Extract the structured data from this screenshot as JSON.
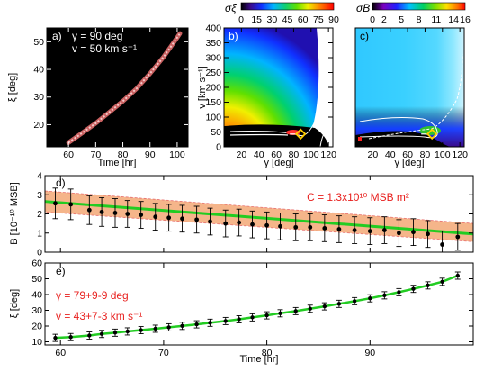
{
  "chart_data": [
    {
      "id": "a",
      "type": "heatmap",
      "panel_label": "a)",
      "annotations": [
        "γ  =  90 deg",
        "v  =  50 km s⁻¹"
      ],
      "xlabel": "Time [hr]",
      "ylabel": "ξ [deg]",
      "xlim": [
        52,
        104
      ],
      "ylim": [
        12,
        55
      ],
      "xticks": [
        60,
        70,
        80,
        90,
        100
      ],
      "yticks": [
        20,
        30,
        40,
        50
      ],
      "track": [
        [
          60,
          13.5
        ],
        [
          65,
          17
        ],
        [
          70,
          20.5
        ],
        [
          75,
          24.5
        ],
        [
          80,
          28.5
        ],
        [
          85,
          33
        ],
        [
          90,
          38.5
        ],
        [
          95,
          44.5
        ],
        [
          100,
          51.5
        ],
        [
          101,
          53
        ]
      ]
    },
    {
      "id": "b",
      "type": "heatmap",
      "panel_label": "b)",
      "colorbar_label": "σξ",
      "colorbar_ticks": [
        0,
        15,
        30,
        45,
        60,
        75,
        90
      ],
      "xlabel": "γ [deg]",
      "ylabel": "v [km s⁻¹]",
      "xlim": [
        0,
        125
      ],
      "ylim": [
        0,
        400
      ],
      "xticks": [
        20,
        40,
        60,
        80,
        100,
        120
      ],
      "yticks": [
        0,
        50,
        100,
        150,
        200,
        250,
        300,
        350,
        400
      ],
      "best_fit": [
        88,
        43
      ]
    },
    {
      "id": "c",
      "type": "heatmap",
      "panel_label": "c)",
      "colorbar_label": "σB",
      "colorbar_ticks": [
        0,
        2,
        5,
        8,
        11,
        14,
        16
      ],
      "xlabel": "γ [deg]",
      "xlim": [
        0,
        125
      ],
      "ylim": [
        0,
        400
      ],
      "xticks": [
        20,
        40,
        60,
        80,
        100,
        120
      ],
      "best_fit": [
        88,
        43
      ]
    },
    {
      "id": "d",
      "type": "scatter",
      "panel_label": "d)",
      "annotation": "C = 1.3x10¹⁰ MSB m²",
      "ylabel": "B [10⁻¹⁰ MSB]",
      "xlim": [
        58.5,
        100
      ],
      "ylim": [
        0,
        4
      ],
      "xticks": [
        60,
        70,
        80,
        90
      ],
      "yticks": [
        0,
        1,
        2,
        3,
        4
      ],
      "x": [
        59.5,
        61,
        62.8,
        64,
        65.3,
        66.5,
        67.8,
        69.2,
        70.5,
        71.8,
        73.2,
        74.5,
        76,
        77.3,
        78.6,
        80,
        81.3,
        82.8,
        84.2,
        85.6,
        87,
        88.5,
        90,
        91.4,
        92.8,
        94.2,
        95.6,
        97,
        98.5
      ],
      "y": [
        2.55,
        2.5,
        2.2,
        2.1,
        2.05,
        2.0,
        1.95,
        1.85,
        1.8,
        1.75,
        1.7,
        1.6,
        1.5,
        1.55,
        1.45,
        1.4,
        1.35,
        1.3,
        1.3,
        1.25,
        1.2,
        1.15,
        1.1,
        1.15,
        1.0,
        1.05,
        0.95,
        0.4,
        0.8
      ],
      "yerr": [
        0.8,
        0.8,
        0.75,
        0.75,
        0.75,
        0.7,
        0.7,
        0.7,
        0.7,
        0.7,
        0.7,
        0.7,
        0.7,
        0.7,
        0.7,
        0.7,
        0.7,
        0.7,
        0.7,
        0.7,
        0.7,
        0.7,
        0.7,
        0.7,
        0.7,
        0.7,
        0.7,
        0.7,
        0.7
      ],
      "fit": [
        2.65,
        0.95
      ],
      "band_upper": [
        3.2,
        1.5
      ],
      "band_lower": [
        2.1,
        0.55
      ]
    },
    {
      "id": "e",
      "type": "scatter",
      "panel_label": "e)",
      "annotation_gamma": "γ = 79+9-9 deg",
      "annotation_v": "v = 43+7-3 km s⁻¹",
      "xlabel": "Time [hr]",
      "ylabel": "ξ [deg]",
      "xlim": [
        58.5,
        100
      ],
      "ylim": [
        8,
        60
      ],
      "xticks": [
        60,
        70,
        80,
        90
      ],
      "yticks": [
        10,
        20,
        30,
        40,
        50,
        60
      ],
      "x": [
        59.5,
        61,
        62.8,
        64,
        65.3,
        66.5,
        67.8,
        69.2,
        70.5,
        71.8,
        73.2,
        74.5,
        76,
        77.3,
        78.6,
        80,
        81.3,
        82.8,
        84.2,
        85.6,
        87,
        88.5,
        90,
        91.4,
        92.8,
        94.2,
        95.6,
        97,
        98.5
      ],
      "y": [
        12.5,
        13,
        14,
        15,
        15.8,
        16.6,
        17.4,
        18.3,
        19.2,
        20.1,
        21.1,
        22.1,
        23.2,
        24.3,
        25.5,
        26.8,
        28.1,
        29.5,
        31,
        32.5,
        34.1,
        35.8,
        37.6,
        39.5,
        41.5,
        43.6,
        45.8,
        48.1,
        52
      ]
    }
  ],
  "colors": {
    "series": "#000000",
    "fit_line": "#22cc22",
    "band": "#f5b58a",
    "annotation": "#e8201e"
  }
}
